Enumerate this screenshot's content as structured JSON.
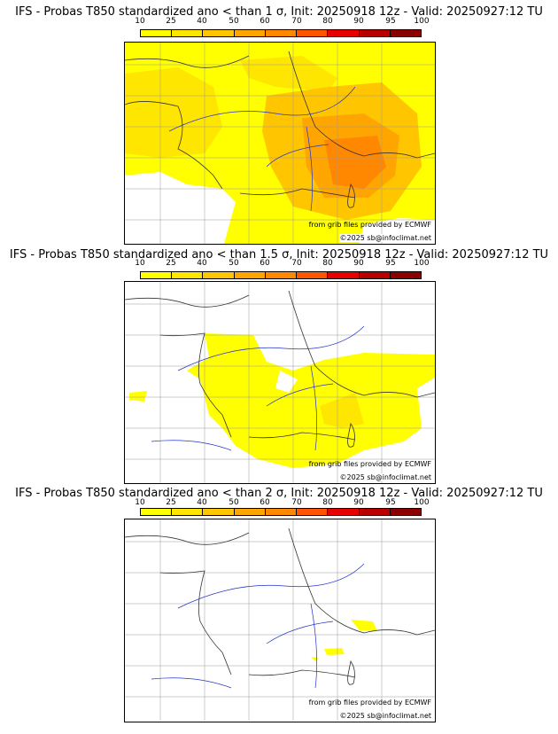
{
  "colorbar": {
    "ticks": [
      "10",
      "25",
      "40",
      "50",
      "60",
      "70",
      "80",
      "90",
      "95",
      "100"
    ],
    "colors": [
      "#ffff00",
      "#ffe600",
      "#ffc600",
      "#ffa500",
      "#ff8800",
      "#ff5500",
      "#e60000",
      "#b80000",
      "#8b0000",
      "#5a0000"
    ]
  },
  "map_colors": {
    "land_gray": "#999999",
    "rivers": "#2233cc",
    "borders": "#333333"
  },
  "panels": [
    {
      "title": "IFS - Probas T850  standardized ano < than 1 σ, Init: 20250918 12z - Valid: 20250927:12 TU",
      "credit_source": "from grib files provided by ECMWF",
      "credit_copy": "©2025 sb@infoclimat.net"
    },
    {
      "title": "IFS - Probas T850  standardized ano < than 1.5 σ, Init: 20250918 12z - Valid: 20250927:12 TU",
      "credit_source": "from grib files provided by ECMWF",
      "credit_copy": "©2025 sb@infoclimat.net"
    },
    {
      "title": "IFS - Probas T850  standardized ano < than 2 σ, Init: 20250918 12z - Valid: 20250927:12 TU",
      "credit_source": "from grib files provided by ECMWF",
      "credit_copy": "©2025 sb@infoclimat.net"
    }
  ]
}
